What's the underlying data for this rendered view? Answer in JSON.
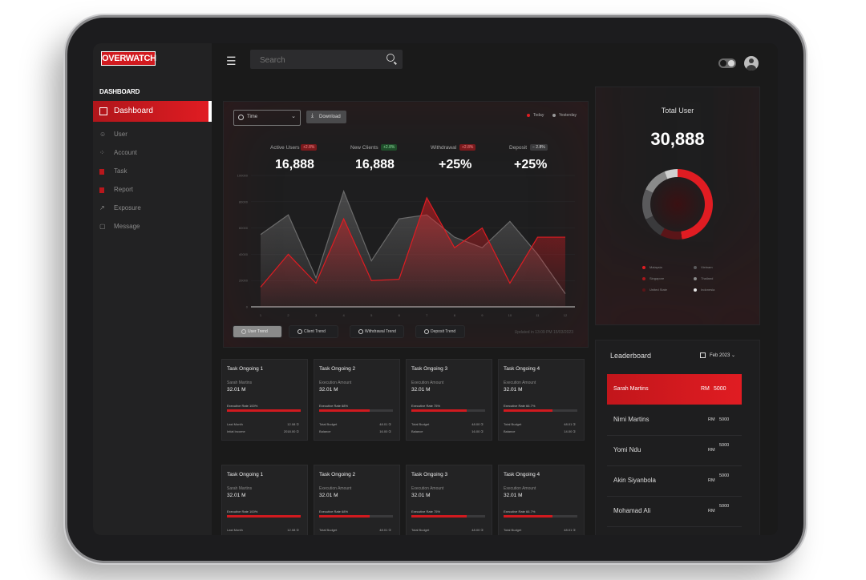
{
  "brand": {
    "logo_text": "OVERWATCH",
    "accent": "#d11a1f"
  },
  "sidebar": {
    "section_label": "DASHBOARD",
    "active_item": {
      "label": "Dashboard",
      "icon": "grid-icon"
    },
    "items": [
      {
        "label": "User",
        "icon": "user-icon"
      },
      {
        "label": "Account",
        "icon": "accounts-icon"
      },
      {
        "label": "Task",
        "icon": "task-icon"
      },
      {
        "label": "Report",
        "icon": "report-icon"
      },
      {
        "label": "Exposure",
        "icon": "trend-icon"
      },
      {
        "label": "Message",
        "icon": "message-icon"
      }
    ]
  },
  "header": {
    "search_placeholder": "Search"
  },
  "chart_panel": {
    "time_select": "Time",
    "download_label": "Download",
    "legend": [
      {
        "label": "Today",
        "color": "#e01c22"
      },
      {
        "label": "Yesterday",
        "color": "#9a9a9a"
      }
    ],
    "metrics": [
      {
        "label": "Active Users",
        "badge": "+2.8%",
        "value": "16,888",
        "badge_color": "#7a1a1d"
      },
      {
        "label": "New Clients",
        "badge": "+2.8%",
        "value": "16,888",
        "badge_color": "#1f4d2a"
      },
      {
        "label": "Withdrawal",
        "badge": "+2.8%",
        "value": "+25%",
        "badge_color": "#7a1a1d"
      },
      {
        "label": "Deposit",
        "badge": "− 2.8%",
        "value": "+25%",
        "badge_color": "#3a3a3c"
      }
    ],
    "tabs": [
      {
        "label": "User Trend",
        "active": true
      },
      {
        "label": "Client Trend",
        "active": false
      },
      {
        "label": "Withdrawal Trend",
        "active": false
      },
      {
        "label": "Deposit Trend",
        "active": false
      }
    ],
    "updated_text": "Updated in 13:09 PM 15/03/2023"
  },
  "chart_data": {
    "type": "area",
    "x": [
      "1",
      "2",
      "3",
      "4",
      "5",
      "6",
      "7",
      "8",
      "9",
      "10",
      "11",
      "12"
    ],
    "y_ticks": [
      "0",
      "20000",
      "40000",
      "60000",
      "80000",
      "100000"
    ],
    "ylim": [
      0,
      100000
    ],
    "series": [
      {
        "name": "Today",
        "values": [
          15000,
          40000,
          18000,
          67000,
          20000,
          21000,
          83000,
          45000,
          60000,
          18000,
          53000,
          53000
        ]
      },
      {
        "name": "Yesterday",
        "values": [
          55000,
          70000,
          22000,
          88000,
          35000,
          67000,
          70000,
          53000,
          45000,
          65000,
          40000,
          10000
        ]
      }
    ]
  },
  "tasks": {
    "row1": [
      {
        "title": "Task Ongoing 1",
        "sub": "Sarah Martins",
        "amount": "32.01 M",
        "rate_label": "Executive Rate",
        "rate": "100%",
        "progress": 1.0,
        "r1_label": "Last Month",
        "r1_value": "12.08 ①",
        "r2_label": "Intial Income",
        "r2_value": "2018.00 ①"
      },
      {
        "title": "Task Ongoing 2",
        "sub": "Execution Amount",
        "amount": "32.01 M",
        "rate_label": "Executive Rate",
        "rate": "68%",
        "progress": 0.68,
        "r1_label": "Total Budget",
        "r1_value": "48.01 ①",
        "r2_label": "Balance",
        "r2_value": "16.00 ①"
      },
      {
        "title": "Task Ongoing 3",
        "sub": "Execution Amount",
        "amount": "32.01 M",
        "rate_label": "Executive Rate",
        "rate": "75%",
        "progress": 0.75,
        "r1_label": "Total Budget",
        "r1_value": "48.00 ①",
        "r2_label": "Balance",
        "r2_value": "16.00 ①"
      },
      {
        "title": "Task Ongoing 4",
        "sub": "Execution Amount",
        "amount": "32.01 M",
        "rate_label": "Executive Rate",
        "rate": "66.7%",
        "progress": 0.667,
        "r1_label": "Total Budget",
        "r1_value": "48.01 ①",
        "r2_label": "Balance",
        "r2_value": "14.00 ①"
      }
    ],
    "row2": [
      {
        "title": "Task Ongoing 1",
        "sub": "Sarah Martins",
        "amount": "32.01 M",
        "rate_label": "Executive Rate",
        "rate": "100%",
        "progress": 1.0,
        "r1_label": "Last Month",
        "r1_value": "12.08 ①",
        "r2_label": "Intial Income",
        "r2_value": "2018.00 ①"
      },
      {
        "title": "Task Ongoing 2",
        "sub": "Execution Amount",
        "amount": "32.01 M",
        "rate_label": "Executive Rate",
        "rate": "68%",
        "progress": 0.68,
        "r1_label": "Total Budget",
        "r1_value": "48.01 ①",
        "r2_label": "Balance",
        "r2_value": "16.00 ①"
      },
      {
        "title": "Task Ongoing 3",
        "sub": "Execution Amount",
        "amount": "32.01 M",
        "rate_label": "Executive Rate",
        "rate": "75%",
        "progress": 0.75,
        "r1_label": "Total Budget",
        "r1_value": "48.00 ①",
        "r2_label": "Balance",
        "r2_value": "16.00 ①"
      },
      {
        "title": "Task Ongoing 4",
        "sub": "Execution Amount",
        "amount": "32.01 M",
        "rate_label": "Executive Rate",
        "rate": "66.7%",
        "progress": 0.667,
        "r1_label": "Total Budget",
        "r1_value": "48.01 ①",
        "r2_label": "Balance",
        "r2_value": "14.00 ①"
      }
    ]
  },
  "total_user": {
    "title": "Total User",
    "value": "30,888",
    "legend": [
      {
        "label": "Malaysia",
        "color": "#e01c22"
      },
      {
        "label": "Vietnam",
        "color": "#5a5a5c"
      },
      {
        "label": "Singapore",
        "color": "#a8171c"
      },
      {
        "label": "Thailand",
        "color": "#8a8a8a"
      },
      {
        "label": "United State",
        "color": "#5a1518"
      },
      {
        "label": "Indonesia",
        "color": "#e6e6e6"
      }
    ]
  },
  "leaderboard": {
    "title": "Leaderboard",
    "month": "Feb  2023",
    "rows": [
      {
        "name": "Sarah Martins",
        "currency": "RM",
        "amount": "5000"
      },
      {
        "name": "Nimi Martins",
        "currency": "RM",
        "amount": "5000"
      },
      {
        "name": "Yomi Ndu",
        "currency": "RM",
        "amount": "5000"
      },
      {
        "name": "Akin Siyanbola",
        "currency": "RM",
        "amount": "5000"
      },
      {
        "name": "Mohamad Ali",
        "currency": "RM",
        "amount": "5000"
      }
    ]
  }
}
